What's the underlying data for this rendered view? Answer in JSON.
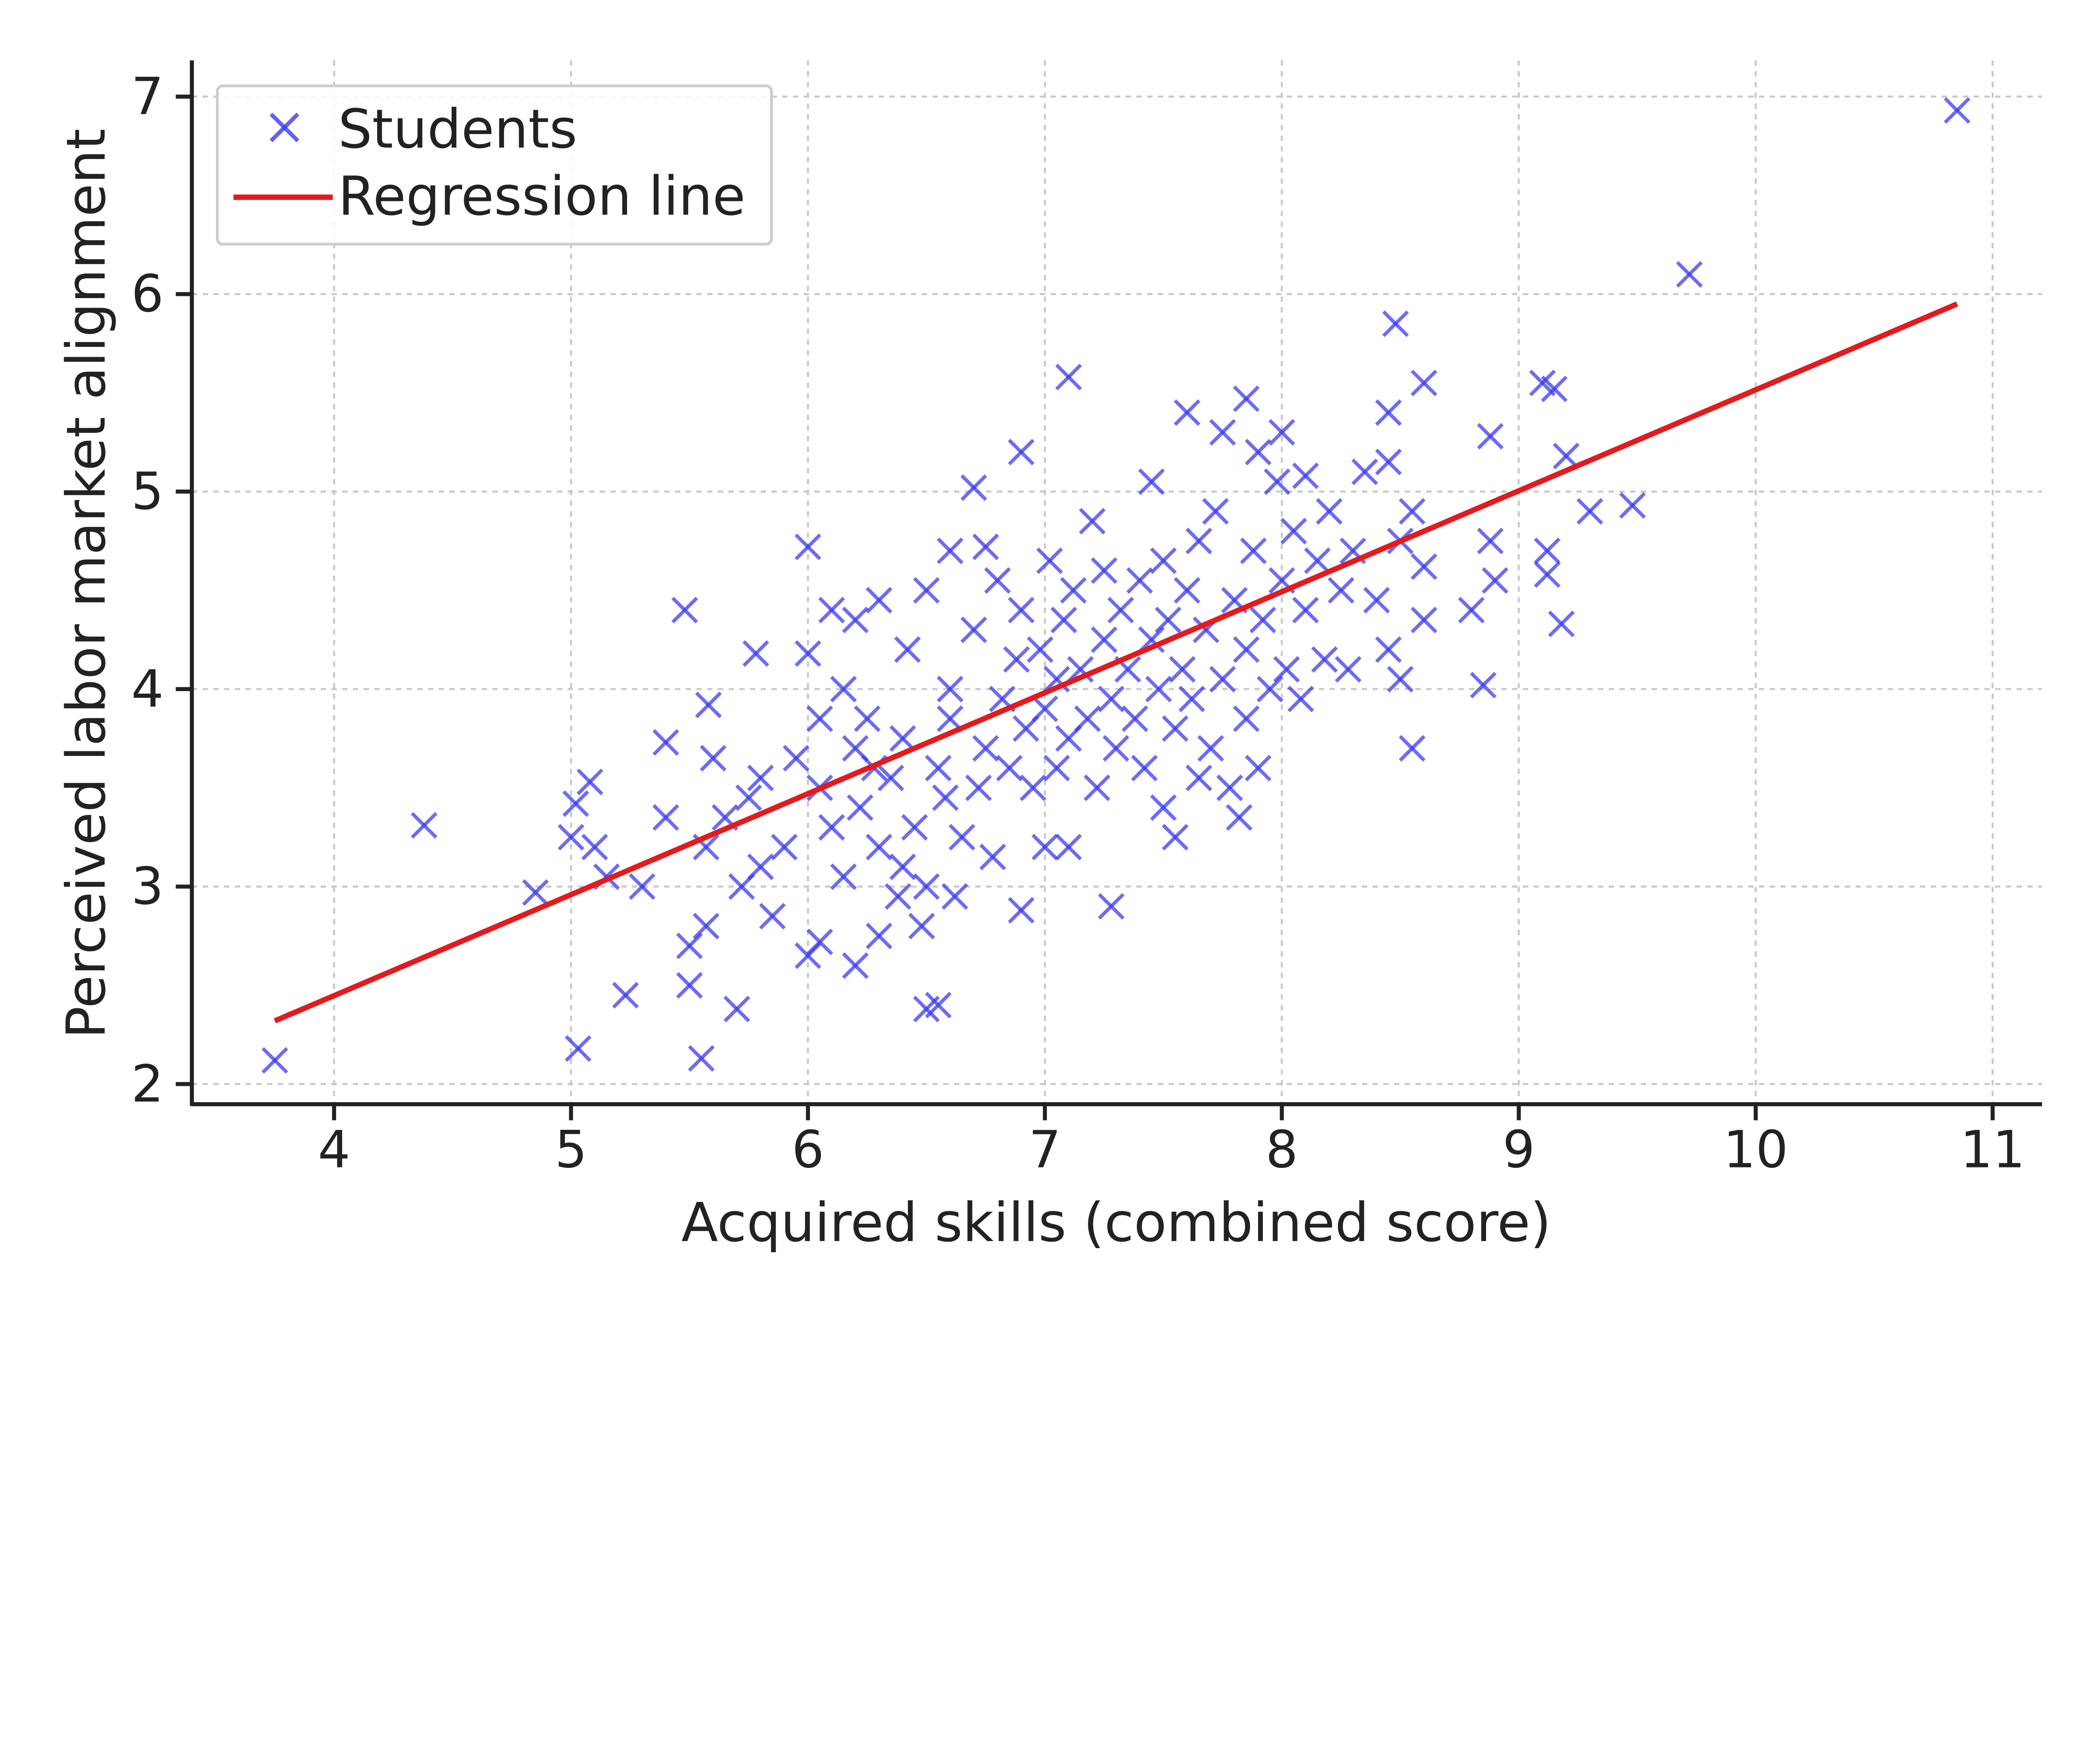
{
  "chart_data": {
    "type": "scatter",
    "title": "",
    "xlabel": "Acquired skills (combined score)",
    "ylabel": "Perceived labor market alignment",
    "xlim": [
      3.45,
      11.2
    ],
    "ylim": [
      1.9,
      7.18
    ],
    "xticks": [
      4,
      5,
      6,
      7,
      8,
      9,
      10,
      11
    ],
    "yticks": [
      2,
      3,
      4,
      5,
      6,
      7
    ],
    "grid": true,
    "legend_position": "top-left",
    "series": [
      {
        "name": "Students",
        "marker": "x",
        "color": "#3b3bf0",
        "points": [
          [
            3.75,
            2.12
          ],
          [
            4.38,
            3.31
          ],
          [
            4.85,
            2.97
          ],
          [
            5.03,
            2.18
          ],
          [
            5.0,
            3.25
          ],
          [
            5.02,
            3.42
          ],
          [
            5.08,
            3.53
          ],
          [
            5.1,
            3.2
          ],
          [
            5.15,
            3.05
          ],
          [
            5.23,
            2.45
          ],
          [
            5.3,
            3.0
          ],
          [
            5.4,
            3.35
          ],
          [
            5.4,
            3.73
          ],
          [
            5.48,
            4.4
          ],
          [
            5.5,
            2.7
          ],
          [
            5.5,
            2.5
          ],
          [
            5.55,
            2.13
          ],
          [
            5.57,
            2.8
          ],
          [
            5.57,
            3.2
          ],
          [
            5.58,
            3.92
          ],
          [
            5.6,
            3.65
          ],
          [
            5.7,
            2.38
          ],
          [
            5.72,
            3.0
          ],
          [
            5.75,
            3.45
          ],
          [
            5.78,
            4.18
          ],
          [
            5.8,
            3.55
          ],
          [
            5.85,
            2.85
          ],
          [
            5.9,
            3.2
          ],
          [
            6.0,
            4.72
          ],
          [
            6.0,
            2.65
          ],
          [
            6.0,
            4.18
          ],
          [
            6.05,
            3.5
          ],
          [
            6.05,
            2.72
          ],
          [
            6.1,
            4.4
          ],
          [
            6.2,
            2.6
          ],
          [
            6.2,
            4.35
          ],
          [
            6.3,
            4.45
          ],
          [
            6.3,
            2.75
          ],
          [
            6.5,
            2.38
          ],
          [
            6.55,
            2.4
          ],
          [
            6.6,
            4.7
          ],
          [
            6.7,
            5.02
          ],
          [
            6.75,
            4.72
          ],
          [
            6.9,
            5.2
          ],
          [
            6.9,
            2.88
          ],
          [
            7.0,
            3.2
          ],
          [
            7.1,
            3.2
          ],
          [
            7.1,
            5.58
          ],
          [
            7.28,
            2.9
          ],
          [
            7.45,
            5.05
          ],
          [
            7.6,
            5.4
          ],
          [
            7.75,
            5.3
          ],
          [
            7.85,
            5.47
          ],
          [
            7.9,
            5.2
          ],
          [
            8.0,
            5.3
          ],
          [
            8.1,
            5.08
          ],
          [
            8.45,
            5.4
          ],
          [
            8.48,
            5.85
          ],
          [
            8.6,
            5.55
          ],
          [
            8.45,
            5.15
          ],
          [
            8.55,
            3.7
          ],
          [
            8.5,
            4.05
          ],
          [
            8.55,
            4.9
          ],
          [
            8.6,
            4.35
          ],
          [
            8.6,
            4.62
          ],
          [
            8.8,
            4.4
          ],
          [
            8.85,
            4.02
          ],
          [
            8.88,
            5.28
          ],
          [
            8.88,
            4.75
          ],
          [
            8.9,
            4.55
          ],
          [
            9.1,
            5.55
          ],
          [
            9.15,
            5.52
          ],
          [
            9.12,
            4.7
          ],
          [
            9.12,
            4.58
          ],
          [
            9.18,
            4.33
          ],
          [
            9.2,
            5.18
          ],
          [
            9.3,
            4.9
          ],
          [
            9.48,
            4.93
          ],
          [
            9.72,
            6.1
          ],
          [
            10.85,
            6.93
          ],
          [
            5.65,
            3.35
          ],
          [
            5.8,
            3.1
          ],
          [
            5.95,
            3.65
          ],
          [
            6.05,
            3.85
          ],
          [
            6.1,
            3.3
          ],
          [
            6.15,
            3.05
          ],
          [
            6.2,
            3.7
          ],
          [
            6.22,
            3.4
          ],
          [
            6.25,
            3.85
          ],
          [
            6.3,
            3.2
          ],
          [
            6.35,
            3.55
          ],
          [
            6.38,
            2.95
          ],
          [
            6.4,
            3.75
          ],
          [
            6.42,
            4.2
          ],
          [
            6.45,
            3.3
          ],
          [
            6.5,
            3.0
          ],
          [
            6.5,
            4.5
          ],
          [
            6.55,
            3.6
          ],
          [
            6.6,
            3.85
          ],
          [
            6.6,
            4.0
          ],
          [
            6.65,
            3.25
          ],
          [
            6.7,
            4.3
          ],
          [
            6.72,
            3.5
          ],
          [
            6.75,
            3.7
          ],
          [
            6.78,
            3.15
          ],
          [
            6.8,
            4.55
          ],
          [
            6.82,
            3.95
          ],
          [
            6.85,
            3.6
          ],
          [
            6.88,
            4.15
          ],
          [
            6.9,
            4.4
          ],
          [
            6.92,
            3.8
          ],
          [
            6.95,
            3.5
          ],
          [
            6.98,
            4.2
          ],
          [
            7.0,
            3.9
          ],
          [
            7.02,
            4.65
          ],
          [
            7.05,
            4.05
          ],
          [
            7.05,
            3.6
          ],
          [
            7.08,
            4.35
          ],
          [
            7.1,
            3.75
          ],
          [
            7.12,
            4.5
          ],
          [
            7.15,
            4.1
          ],
          [
            7.18,
            3.85
          ],
          [
            7.2,
            4.85
          ],
          [
            7.22,
            3.5
          ],
          [
            7.25,
            4.25
          ],
          [
            7.25,
            4.6
          ],
          [
            7.28,
            3.95
          ],
          [
            7.3,
            3.7
          ],
          [
            7.32,
            4.4
          ],
          [
            7.35,
            4.1
          ],
          [
            7.38,
            3.85
          ],
          [
            7.4,
            4.55
          ],
          [
            7.42,
            3.6
          ],
          [
            7.45,
            4.25
          ],
          [
            7.48,
            4.0
          ],
          [
            7.5,
            4.65
          ],
          [
            7.5,
            3.4
          ],
          [
            7.52,
            4.35
          ],
          [
            7.55,
            3.8
          ],
          [
            7.55,
            3.25
          ],
          [
            7.58,
            4.1
          ],
          [
            7.6,
            4.5
          ],
          [
            7.62,
            3.95
          ],
          [
            7.65,
            4.75
          ],
          [
            7.65,
            3.55
          ],
          [
            7.68,
            4.3
          ],
          [
            7.7,
            3.7
          ],
          [
            7.72,
            4.9
          ],
          [
            7.75,
            4.05
          ],
          [
            7.78,
            3.5
          ],
          [
            7.8,
            4.45
          ],
          [
            7.82,
            3.35
          ],
          [
            7.85,
            4.2
          ],
          [
            7.85,
            3.85
          ],
          [
            7.88,
            4.7
          ],
          [
            7.9,
            3.6
          ],
          [
            7.92,
            4.35
          ],
          [
            7.95,
            4.0
          ],
          [
            7.98,
            5.05
          ],
          [
            8.0,
            4.55
          ],
          [
            8.02,
            4.1
          ],
          [
            8.05,
            4.8
          ],
          [
            8.08,
            3.95
          ],
          [
            8.1,
            4.4
          ],
          [
            8.15,
            4.65
          ],
          [
            8.18,
            4.15
          ],
          [
            8.2,
            4.9
          ],
          [
            8.25,
            4.5
          ],
          [
            8.28,
            4.1
          ],
          [
            8.3,
            4.7
          ],
          [
            8.35,
            5.1
          ],
          [
            8.4,
            4.45
          ],
          [
            8.45,
            4.2
          ],
          [
            8.5,
            4.75
          ],
          [
            6.15,
            4.0
          ],
          [
            6.28,
            3.6
          ],
          [
            6.4,
            3.1
          ],
          [
            6.48,
            2.8
          ],
          [
            6.58,
            3.45
          ],
          [
            6.62,
            2.95
          ]
        ]
      },
      {
        "name": "Regression line",
        "type": "line",
        "color": "#e41a1c",
        "points": [
          [
            3.75,
            2.32
          ],
          [
            10.85,
            5.95
          ]
        ]
      }
    ]
  }
}
